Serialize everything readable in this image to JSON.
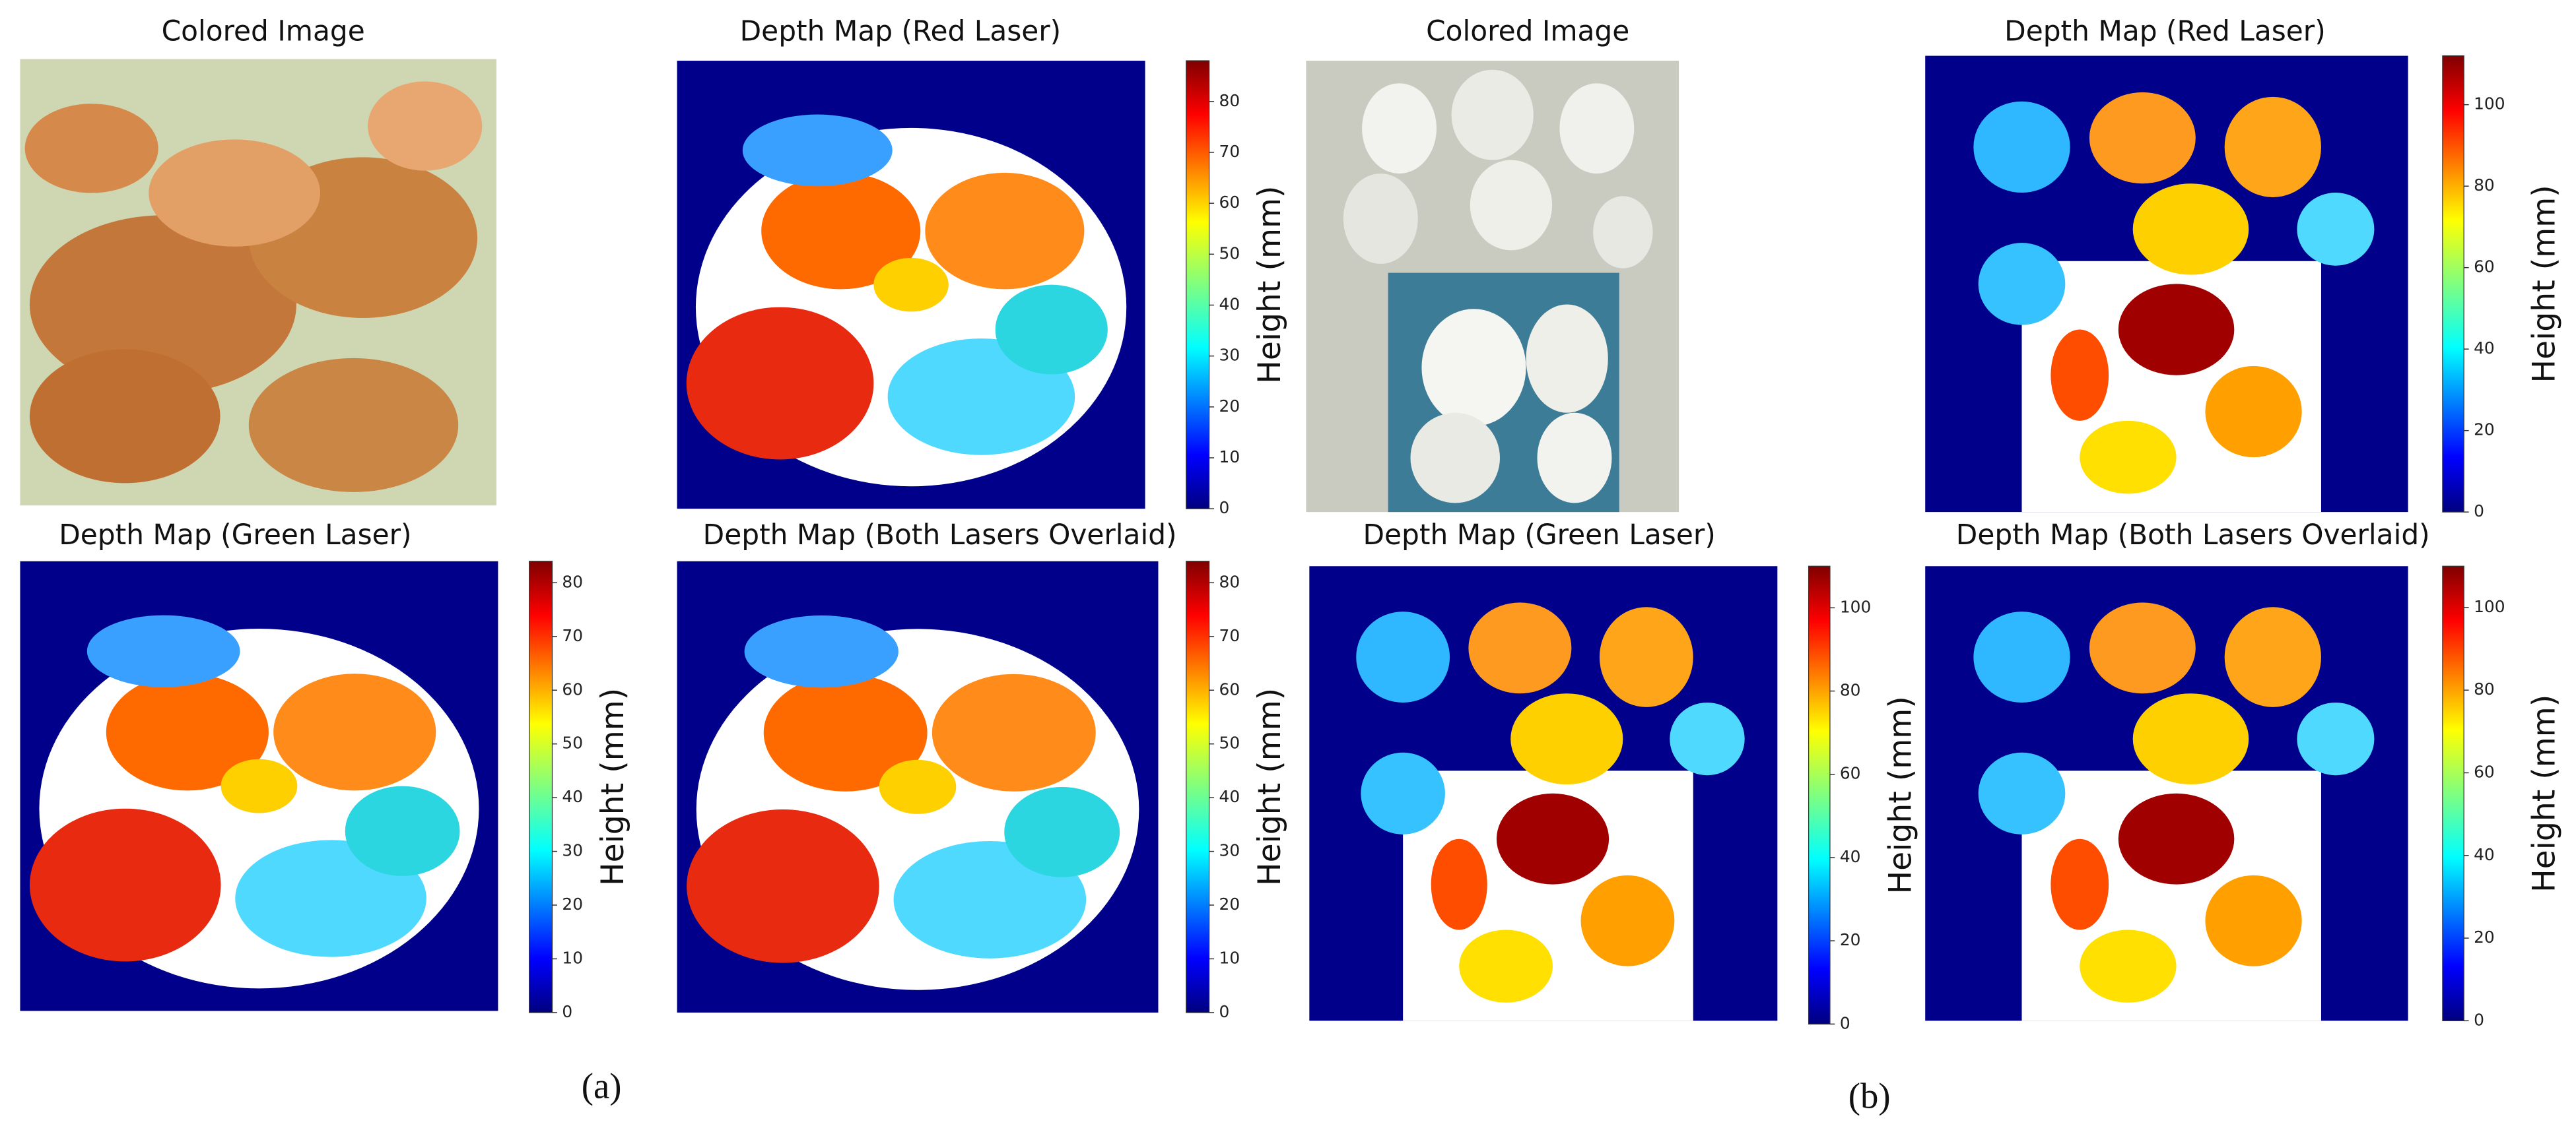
{
  "panels": [
    {
      "title": "Colored Image"
    },
    {
      "title": "Depth Map (Red Laser)",
      "colorbar": {
        "label": "Height (mm)",
        "lim": [
          0,
          88
        ],
        "ticks": [
          0,
          10,
          20,
          30,
          40,
          50,
          60,
          70,
          80
        ]
      }
    },
    {
      "title": "Depth Map (Green Laser)",
      "colorbar": {
        "label": "Height (mm)",
        "lim": [
          0,
          84
        ],
        "ticks": [
          0,
          10,
          20,
          30,
          40,
          50,
          60,
          70,
          80
        ]
      }
    },
    {
      "title": "Depth Map (Both Lasers Overlaid)",
      "colorbar": {
        "label": "Height (mm)",
        "lim": [
          0,
          84
        ],
        "ticks": [
          0,
          10,
          20,
          30,
          40,
          50,
          60,
          70,
          80
        ]
      }
    },
    {
      "title": "Colored Image"
    },
    {
      "title": "Depth Map (Red Laser)",
      "colorbar": {
        "label": "Height (mm)",
        "lim": [
          0,
          112
        ],
        "ticks": [
          0,
          20,
          40,
          60,
          80,
          100
        ]
      }
    },
    {
      "title": "Depth Map (Green Laser)",
      "colorbar": {
        "label": "Height (mm)",
        "lim": [
          0,
          110
        ],
        "ticks": [
          0,
          20,
          40,
          60,
          80,
          100
        ]
      }
    },
    {
      "title": "Depth Map (Both Lasers Overlaid)",
      "colorbar": {
        "label": "Height (mm)",
        "lim": [
          0,
          110
        ],
        "ticks": [
          0,
          20,
          40,
          60,
          80,
          100
        ]
      }
    }
  ],
  "labels": [
    "(a)",
    "(b)"
  ]
}
